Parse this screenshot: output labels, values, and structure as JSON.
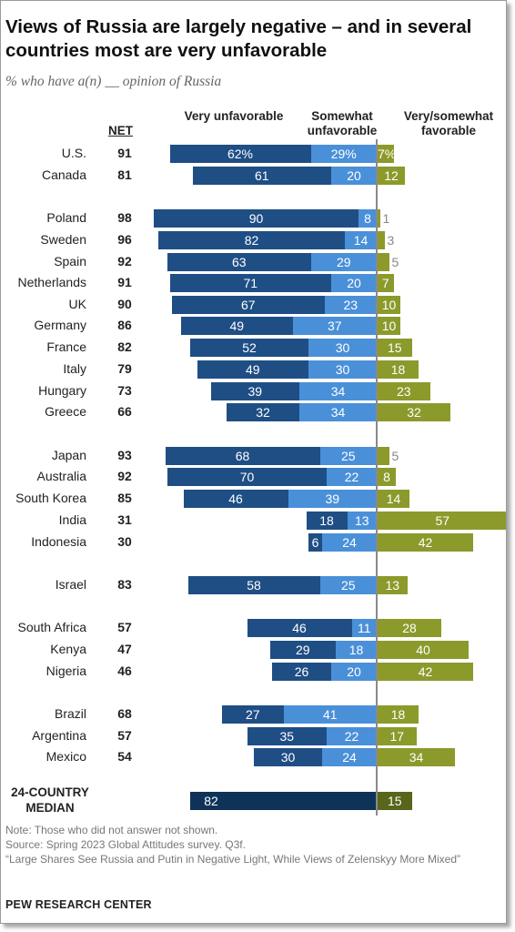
{
  "title": "Views of Russia are largely negative – and in several countries most are very unfavorable",
  "subtitle": "% who have a(n) __ opinion of Russia",
  "headers": {
    "net": "NET",
    "very": "Very unfavorable",
    "somewhat": "Somewhat unfavorable",
    "favorable": "Very/somewhat favorable"
  },
  "chart_data": {
    "type": "bar",
    "orientation": "horizontal",
    "stacked": "diverging",
    "series": [
      {
        "name": "Very unfavorable",
        "color": "#1f4e85"
      },
      {
        "name": "Somewhat unfavorable",
        "color": "#4a90d9"
      },
      {
        "name": "Very/somewhat favorable",
        "color": "#8c9a2b"
      }
    ],
    "rows": [
      {
        "country": "U.S.",
        "net": 91,
        "very": 62,
        "somewhat": 29,
        "favorable": 7,
        "very_label": "62%",
        "somewhat_label": "29%",
        "favorable_label": "7%"
      },
      {
        "country": "Canada",
        "net": 81,
        "very": 61,
        "somewhat": 20,
        "favorable": 12,
        "very_label": "61",
        "somewhat_label": "20",
        "favorable_label": "12"
      },
      {
        "country": "Poland",
        "net": 98,
        "very": 90,
        "somewhat": 8,
        "favorable": 1,
        "very_label": "90",
        "somewhat_label": "8",
        "favorable_label": "1"
      },
      {
        "country": "Sweden",
        "net": 96,
        "very": 82,
        "somewhat": 14,
        "favorable": 3,
        "very_label": "82",
        "somewhat_label": "14",
        "favorable_label": "3"
      },
      {
        "country": "Spain",
        "net": 92,
        "very": 63,
        "somewhat": 29,
        "favorable": 5,
        "very_label": "63",
        "somewhat_label": "29",
        "favorable_label": "5"
      },
      {
        "country": "Netherlands",
        "net": 91,
        "very": 71,
        "somewhat": 20,
        "favorable": 7,
        "very_label": "71",
        "somewhat_label": "20",
        "favorable_label": "7"
      },
      {
        "country": "UK",
        "net": 90,
        "very": 67,
        "somewhat": 23,
        "favorable": 10,
        "very_label": "67",
        "somewhat_label": "23",
        "favorable_label": "10"
      },
      {
        "country": "Germany",
        "net": 86,
        "very": 49,
        "somewhat": 37,
        "favorable": 10,
        "very_label": "49",
        "somewhat_label": "37",
        "favorable_label": "10"
      },
      {
        "country": "France",
        "net": 82,
        "very": 52,
        "somewhat": 30,
        "favorable": 15,
        "very_label": "52",
        "somewhat_label": "30",
        "favorable_label": "15"
      },
      {
        "country": "Italy",
        "net": 79,
        "very": 49,
        "somewhat": 30,
        "favorable": 18,
        "very_label": "49",
        "somewhat_label": "30",
        "favorable_label": "18"
      },
      {
        "country": "Hungary",
        "net": 73,
        "very": 39,
        "somewhat": 34,
        "favorable": 23,
        "very_label": "39",
        "somewhat_label": "34",
        "favorable_label": "23"
      },
      {
        "country": "Greece",
        "net": 66,
        "very": 32,
        "somewhat": 34,
        "favorable": 32,
        "very_label": "32",
        "somewhat_label": "34",
        "favorable_label": "32"
      },
      {
        "country": "Japan",
        "net": 93,
        "very": 68,
        "somewhat": 25,
        "favorable": 5,
        "very_label": "68",
        "somewhat_label": "25",
        "favorable_label": "5"
      },
      {
        "country": "Australia",
        "net": 92,
        "very": 70,
        "somewhat": 22,
        "favorable": 8,
        "very_label": "70",
        "somewhat_label": "22",
        "favorable_label": "8"
      },
      {
        "country": "South Korea",
        "net": 85,
        "very": 46,
        "somewhat": 39,
        "favorable": 14,
        "very_label": "46",
        "somewhat_label": "39",
        "favorable_label": "14"
      },
      {
        "country": "India",
        "net": 31,
        "very": 18,
        "somewhat": 13,
        "favorable": 57,
        "very_label": "18",
        "somewhat_label": "13",
        "favorable_label": "57"
      },
      {
        "country": "Indonesia",
        "net": 30,
        "very": 6,
        "somewhat": 24,
        "favorable": 42,
        "very_label": "6",
        "somewhat_label": "24",
        "favorable_label": "42"
      },
      {
        "country": "Israel",
        "net": 83,
        "very": 58,
        "somewhat": 25,
        "favorable": 13,
        "very_label": "58",
        "somewhat_label": "25",
        "favorable_label": "13"
      },
      {
        "country": "South Africa",
        "net": 57,
        "very": 46,
        "somewhat": 11,
        "favorable": 28,
        "very_label": "46",
        "somewhat_label": "11",
        "favorable_label": "28"
      },
      {
        "country": "Kenya",
        "net": 47,
        "very": 29,
        "somewhat": 18,
        "favorable": 40,
        "very_label": "29",
        "somewhat_label": "18",
        "favorable_label": "40"
      },
      {
        "country": "Nigeria",
        "net": 46,
        "very": 26,
        "somewhat": 20,
        "favorable": 42,
        "very_label": "26",
        "somewhat_label": "20",
        "favorable_label": "42"
      },
      {
        "country": "Brazil",
        "net": 68,
        "very": 27,
        "somewhat": 41,
        "favorable": 18,
        "very_label": "27",
        "somewhat_label": "41",
        "favorable_label": "18"
      },
      {
        "country": "Argentina",
        "net": 57,
        "very": 35,
        "somewhat": 22,
        "favorable": 17,
        "very_label": "35",
        "somewhat_label": "22",
        "favorable_label": "17"
      },
      {
        "country": "Mexico",
        "net": 54,
        "very": 30,
        "somewhat": 24,
        "favorable": 34,
        "very_label": "30",
        "somewhat_label": "24",
        "favorable_label": "34"
      }
    ],
    "median": {
      "label": "24-COUNTRY MEDIAN",
      "unfavorable": 82,
      "favorable": 15,
      "unfavorable_label": "82",
      "favorable_label": "15",
      "unfavorable_color": "#0f3358",
      "favorable_color": "#57661b"
    }
  },
  "notes": {
    "note": "Note: Those who did not answer not shown.",
    "source": "Source: Spring 2023 Global Attitudes survey. Q3f.",
    "report": "“Large Shares See Russia and Putin in Negative Light, While Views of Zelenskyy More Mixed”"
  },
  "brand": "PEW RESEARCH CENTER"
}
